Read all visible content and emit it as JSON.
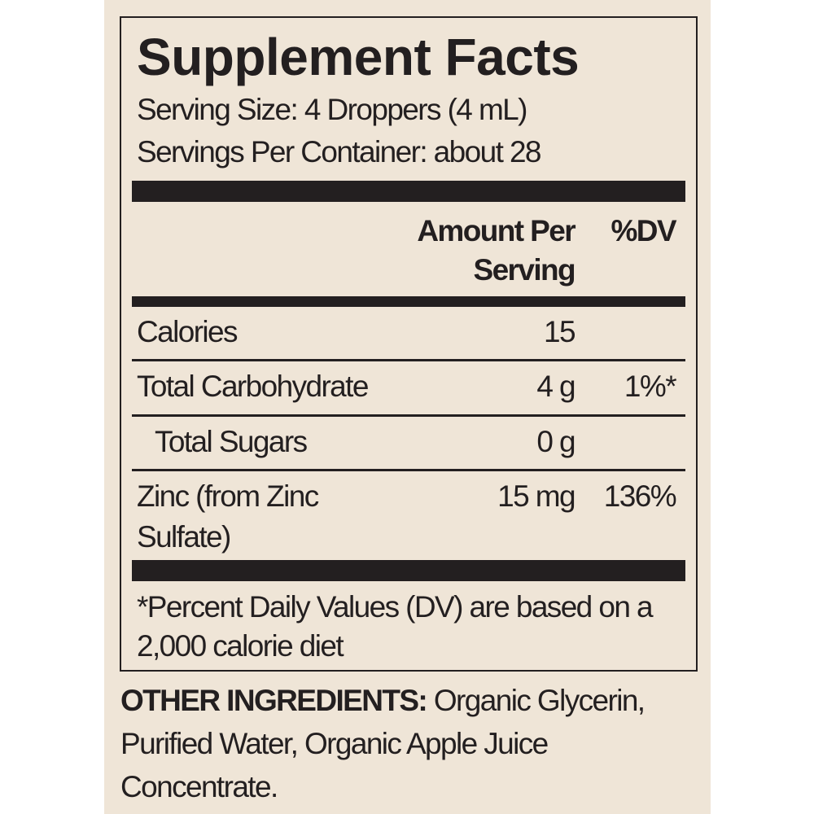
{
  "title": "Supplement Facts",
  "serving_size": "Serving Size: 4 Droppers (4 mL)",
  "servings_per_container": "Servings Per Container: about 28",
  "table": {
    "header": {
      "amount": "Amount Per Serving",
      "dv": "%DV"
    },
    "rows": [
      {
        "name": "Calories",
        "amount": "15"
      },
      {
        "name": "Total Carbohydrate",
        "amount": "4 g",
        "dv": "1%*"
      },
      {
        "name": "Total Sugars",
        "amount": "0 g"
      },
      {
        "name": "Zinc (from Zinc Sulfate)",
        "amount": "15 mg",
        "dv": "136%"
      }
    ]
  },
  "footnote": "*Percent Daily Values (DV) are based on a 2,000 calorie diet",
  "other_ingredients": {
    "label": "OTHER INGREDIENTS:",
    "text": "Organic Glycerin, Purified Water, Organic Apple Juice Concentrate."
  }
}
